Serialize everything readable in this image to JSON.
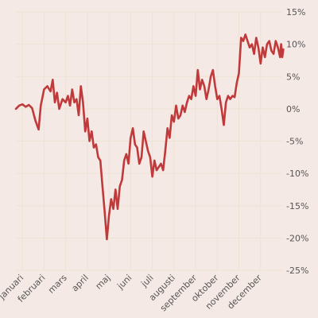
{
  "chart_data": {
    "type": "line",
    "title": "",
    "xlabel": "",
    "ylabel": "",
    "y_unit_suffix": "%",
    "ylim": [
      -25,
      15
    ],
    "y_ticks": [
      15,
      10,
      5,
      0,
      -5,
      -10,
      -15,
      -20,
      -25
    ],
    "y_tick_labels": [
      "15%",
      "10%",
      "5%",
      "0%",
      "-5%",
      "-10%",
      "-15%",
      "-20%",
      "-25%"
    ],
    "y_axis_position": "right",
    "x_ticks": [
      "januari",
      "februari",
      "mars",
      "april",
      "maj",
      "juni",
      "juli",
      "augusti",
      "september",
      "oktober",
      "november",
      "december"
    ],
    "x_tick_label_rotation": -45,
    "grid": true,
    "legend": false,
    "colors": {
      "background": "#f5e9e5",
      "grid": "#efe1d3",
      "line": "#c0393b",
      "tick_text": "#555555"
    },
    "series": [
      {
        "color": "#c0393b",
        "points": [
          [
            0.0,
            0.0
          ],
          [
            0.3,
            0.5
          ],
          [
            0.6,
            0.7
          ],
          [
            0.9,
            0.3
          ],
          [
            1.2,
            0.6
          ],
          [
            1.5,
            0.1
          ],
          [
            1.8,
            -1.8
          ],
          [
            2.1,
            -3.2
          ],
          [
            2.3,
            0.5
          ],
          [
            2.6,
            3.0
          ],
          [
            2.9,
            3.5
          ],
          [
            3.2,
            2.7
          ],
          [
            3.4,
            4.5
          ],
          [
            3.6,
            1.0
          ],
          [
            3.8,
            2.5
          ],
          [
            4.0,
            0.0
          ],
          [
            4.3,
            1.5
          ],
          [
            4.6,
            1.0
          ],
          [
            4.8,
            2.0
          ],
          [
            5.0,
            0.5
          ],
          [
            5.2,
            3.0
          ],
          [
            5.4,
            1.0
          ],
          [
            5.6,
            1.5
          ],
          [
            5.8,
            -1.0
          ],
          [
            6.0,
            3.5
          ],
          [
            6.2,
            1.0
          ],
          [
            6.4,
            -3.5
          ],
          [
            6.6,
            -1.5
          ],
          [
            6.8,
            -5.0
          ],
          [
            7.0,
            -3.5
          ],
          [
            7.2,
            -6.0
          ],
          [
            7.4,
            -5.5
          ],
          [
            7.6,
            -7.5
          ],
          [
            7.8,
            -8.0
          ],
          [
            8.0,
            -12.0
          ],
          [
            8.2,
            -16.0
          ],
          [
            8.4,
            -20.2
          ],
          [
            8.6,
            -16.5
          ],
          [
            8.8,
            -14.0
          ],
          [
            9.0,
            -15.5
          ],
          [
            9.2,
            -12.5
          ],
          [
            9.4,
            -15.5
          ],
          [
            9.6,
            -12.0
          ],
          [
            9.8,
            -11.0
          ],
          [
            10.0,
            -8.0
          ],
          [
            10.2,
            -7.0
          ],
          [
            10.4,
            -8.5
          ],
          [
            10.6,
            -4.5
          ],
          [
            10.8,
            -3.0
          ],
          [
            11.0,
            -5.5
          ],
          [
            11.2,
            -6.0
          ],
          [
            11.4,
            -8.5
          ],
          [
            11.6,
            -7.5
          ],
          [
            11.8,
            -3.5
          ],
          [
            12.0,
            -5.0
          ],
          [
            12.2,
            -6.5
          ],
          [
            12.4,
            -7.5
          ],
          [
            12.6,
            -10.5
          ],
          [
            12.8,
            -8.0
          ],
          [
            13.0,
            -9.5
          ],
          [
            13.2,
            -9.0
          ],
          [
            13.4,
            -8.5
          ],
          [
            13.6,
            -9.5
          ],
          [
            13.8,
            -6.5
          ],
          [
            14.0,
            -3.0
          ],
          [
            14.2,
            -4.5
          ],
          [
            14.4,
            -1.0
          ],
          [
            14.6,
            -2.0
          ],
          [
            14.8,
            0.5
          ],
          [
            15.0,
            -1.5
          ],
          [
            15.2,
            -1.0
          ],
          [
            15.4,
            0.5
          ],
          [
            15.6,
            -0.5
          ],
          [
            15.8,
            1.0
          ],
          [
            16.0,
            2.0
          ],
          [
            16.2,
            1.5
          ],
          [
            16.4,
            3.5
          ],
          [
            16.6,
            2.0
          ],
          [
            16.8,
            6.0
          ],
          [
            17.0,
            3.0
          ],
          [
            17.2,
            4.5
          ],
          [
            17.4,
            3.5
          ],
          [
            17.6,
            1.5
          ],
          [
            17.8,
            3.0
          ],
          [
            18.0,
            5.0
          ],
          [
            18.2,
            6.0
          ],
          [
            18.4,
            3.5
          ],
          [
            18.6,
            1.5
          ],
          [
            18.8,
            2.0
          ],
          [
            19.0,
            0.0
          ],
          [
            19.2,
            -2.5
          ],
          [
            19.4,
            1.0
          ],
          [
            19.6,
            2.0
          ],
          [
            19.8,
            1.5
          ],
          [
            20.0,
            2.0
          ],
          [
            20.2,
            1.8
          ],
          [
            20.4,
            4.0
          ],
          [
            20.6,
            5.5
          ],
          [
            20.8,
            11.0
          ],
          [
            21.0,
            10.5
          ],
          [
            21.2,
            11.5
          ],
          [
            21.4,
            10.5
          ],
          [
            21.6,
            9.5
          ],
          [
            21.8,
            10.0
          ],
          [
            22.0,
            8.5
          ],
          [
            22.2,
            11.0
          ],
          [
            22.4,
            9.5
          ],
          [
            22.6,
            7.0
          ],
          [
            22.8,
            9.5
          ],
          [
            23.0,
            8.0
          ],
          [
            23.2,
            10.0
          ],
          [
            23.4,
            10.5
          ],
          [
            23.6,
            9.0
          ],
          [
            23.8,
            8.5
          ],
          [
            24.0,
            10.5
          ],
          [
            24.2,
            9.5
          ],
          [
            24.4,
            8.0
          ],
          [
            24.5,
            10.0
          ],
          [
            24.6,
            8.0
          ],
          [
            24.7,
            9.2
          ]
        ]
      }
    ]
  }
}
